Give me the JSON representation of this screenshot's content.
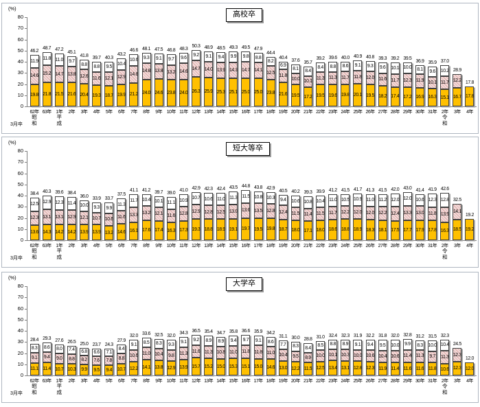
{
  "x_axis": {
    "march_label": "3月卒",
    "eras": [
      {
        "index": 0,
        "lines": [
          "昭",
          "和"
        ]
      },
      {
        "index": 2,
        "lines": [
          "平",
          "成"
        ]
      },
      {
        "index": 33,
        "lines": [
          "令",
          "和"
        ]
      }
    ]
  },
  "style": {
    "bottom_color": "#FFC000",
    "middle_color": "#F2DCDB",
    "middle_hatch_color": "#DFA9A6",
    "top_color": "#FFFFFF",
    "bar_border_color": "#3F3F3F",
    "bar_shadow_color": "#A6A6A6",
    "panel_border_color": "#AEB6C0",
    "axis_color": "#808080"
  },
  "chart_data": [
    {
      "type": "bar",
      "subtype": "stacked",
      "title": "高校卒",
      "ylabel": "(%)",
      "ylim": [
        0,
        80
      ],
      "yticks": [
        0,
        10,
        20,
        30,
        40,
        50,
        60,
        70,
        80
      ],
      "grid": false,
      "legend": "none",
      "categories": [
        "62年",
        "63年",
        "1年",
        "2年",
        "3年",
        "4年",
        "5年",
        "6年",
        "7年",
        "8年",
        "9年",
        "10年",
        "11年",
        "12年",
        "13年",
        "14年",
        "15年",
        "16年",
        "17年",
        "18年",
        "19年",
        "20年",
        "21年",
        "22年",
        "23年",
        "24年",
        "25年",
        "26年",
        "27年",
        "28年",
        "29年",
        "30年",
        "31年",
        "2年",
        "3年",
        "4年"
      ],
      "totals": [
        46.2,
        48.7,
        47.2,
        45.1,
        41.8,
        39.7,
        40.3,
        43.2,
        46.6,
        48.1,
        47.5,
        46.8,
        48.3,
        50.3,
        48.9,
        48.5,
        49.3,
        49.5,
        47.9,
        44.4,
        40.4,
        37.6,
        35.7,
        39.2,
        39.6,
        40.0,
        40.9,
        40.8,
        39.3,
        39.2,
        39.5,
        36.9,
        35.9,
        37.0,
        28.9,
        17.8
      ],
      "series": [
        {
          "name": "bottom",
          "values": [
            19.8,
            21.8,
            21.5,
            21.6,
            20.4,
            19.3,
            18.7,
            19.9,
            21.2,
            24.0,
            24.6,
            23.8,
            24.0,
            26.3,
            25.9,
            25.3,
            25.1,
            25.0,
            25.0,
            23.8,
            21.6,
            19.5,
            17.2,
            19.5,
            19.6,
            19.8,
            20.1,
            19.5,
            18.2,
            17.4,
            17.2,
            16.9,
            16.3,
            15.1,
            16.7,
            17.8
          ]
        },
        {
          "name": "middle",
          "values": [
            14.6,
            15.2,
            14.7,
            13.8,
            12.6,
            11.6,
            12.1,
            12.9,
            14.8,
            14.8,
            13.8,
            13.2,
            14.6,
            14.7,
            14.0,
            13.9,
            14.3,
            14.7,
            14.1,
            12.5,
            11.8,
            10.0,
            10.1,
            11.3,
            11.3,
            11.7,
            11.8,
            12.0,
            11.6,
            11.7,
            12.3,
            11.9,
            10.1,
            11.7,
            12.2,
            null
          ]
        },
        {
          "name": "top",
          "values": [
            11.9,
            11.8,
            11.0,
            9.7,
            8.8,
            8.8,
            9.5,
            10.4,
            10.6,
            9.3,
            9.1,
            9.7,
            9.6,
            9.2,
            9.1,
            9.4,
            9.9,
            9.8,
            8.8,
            8.2,
            6.9,
            8.1,
            8.4,
            8.4,
            8.8,
            8.6,
            9.1,
            9.3,
            9.6,
            10.1,
            10.0,
            8.1,
            9.6,
            10.2,
            null,
            null
          ]
        }
      ]
    },
    {
      "type": "bar",
      "subtype": "stacked",
      "title": "短大等卒",
      "ylabel": "(%)",
      "ylim": [
        0,
        80
      ],
      "yticks": [
        0,
        10,
        20,
        30,
        40,
        50,
        60,
        70,
        80
      ],
      "grid": false,
      "legend": "none",
      "categories": [
        "62年",
        "63年",
        "1年",
        "2年",
        "3年",
        "4年",
        "5年",
        "6年",
        "7年",
        "8年",
        "9年",
        "10年",
        "11年",
        "12年",
        "13年",
        "14年",
        "15年",
        "16年",
        "17年",
        "18年",
        "19年",
        "20年",
        "21年",
        "22年",
        "23年",
        "24年",
        "25年",
        "26年",
        "27年",
        "28年",
        "29年",
        "30年",
        "31年",
        "2年",
        "3年",
        "4年"
      ],
      "totals": [
        38.4,
        40.3,
        39.6,
        38.4,
        36.0,
        33.9,
        33.7,
        37.5,
        41.1,
        41.2,
        39.7,
        39.0,
        41.0,
        42.9,
        42.3,
        42.4,
        43.5,
        44.8,
        43.8,
        42.9,
        40.5,
        40.2,
        39.3,
        39.9,
        41.2,
        41.5,
        41.7,
        41.3,
        41.5,
        42.0,
        43.0,
        41.4,
        41.9,
        42.6,
        32.5,
        19.2
      ],
      "series": [
        {
          "name": "bottom",
          "values": [
            13.6,
            14.3,
            14.2,
            14.2,
            13.9,
            13.9,
            13.2,
            14.6,
            16.1,
            17.6,
            17.4,
            16.3,
            17.3,
            19.3,
            18.8,
            18.9,
            19.1,
            19.7,
            19.5,
            19.8,
            18.7,
            18.0,
            17.1,
            18.0,
            18.6,
            18.8,
            18.9,
            18.3,
            18.1,
            17.5,
            17.7,
            17.9,
            17.8,
            16.3,
            18.5,
            19.2
          ]
        },
        {
          "name": "middle",
          "values": [
            12.3,
            13.1,
            13.1,
            12.9,
            12.1,
            10.7,
            10.6,
            11.6,
            13.3,
            13.2,
            12.1,
            11.6,
            12.8,
            12.9,
            12.8,
            12.5,
            13.0,
            13.6,
            13.5,
            12.8,
            12.4,
            11.5,
            11.4,
            11.5,
            11.7,
            12.2,
            12.0,
            12.0,
            12.2,
            12.4,
            13.3,
            13.0,
            11.8,
            13.5,
            14.1,
            null
          ]
        },
        {
          "name": "top",
          "values": [
            12.5,
            12.9,
            12.3,
            11.4,
            10.0,
            9.3,
            9.9,
            11.3,
            11.7,
            10.4,
            10.1,
            11.1,
            10.9,
            10.7,
            10.6,
            11.0,
            11.3,
            11.5,
            10.8,
            10.3,
            9.4,
            10.6,
            10.8,
            10.4,
            11.0,
            10.5,
            10.9,
            11.0,
            11.2,
            12.0,
            12.0,
            10.6,
            12.3,
            12.8,
            null,
            null
          ]
        }
      ]
    },
    {
      "type": "bar",
      "subtype": "stacked",
      "title": "大学卒",
      "ylabel": "(%)",
      "ylim": [
        0,
        80
      ],
      "yticks": [
        0,
        10,
        20,
        30,
        40,
        50,
        60,
        70,
        80
      ],
      "grid": false,
      "legend": "none",
      "categories": [
        "62年",
        "63年",
        "1年",
        "2年",
        "3年",
        "4年",
        "5年",
        "6年",
        "7年",
        "8年",
        "9年",
        "10年",
        "11年",
        "12年",
        "13年",
        "14年",
        "15年",
        "16年",
        "17年",
        "18年",
        "19年",
        "20年",
        "21年",
        "22年",
        "23年",
        "24年",
        "25年",
        "26年",
        "27年",
        "28年",
        "29年",
        "30年",
        "31年",
        "2年",
        "3年",
        "4年"
      ],
      "totals": [
        28.4,
        29.3,
        27.6,
        26.5,
        25.0,
        23.7,
        24.3,
        27.9,
        32.0,
        33.6,
        32.5,
        32.0,
        34.3,
        36.5,
        35.4,
        34.7,
        35.8,
        36.6,
        35.9,
        34.2,
        31.1,
        30.0,
        28.8,
        31.0,
        32.4,
        32.3,
        31.9,
        32.2,
        31.8,
        32.0,
        32.8,
        31.2,
        31.5,
        32.3,
        24.5,
        12.0
      ],
      "series": [
        {
          "name": "bottom",
          "values": [
            11.1,
            11.4,
            10.7,
            10.3,
            9.9,
            9.5,
            9.4,
            10.7,
            12.2,
            14.1,
            13.8,
            12.9,
            13.9,
            15.7,
            15.2,
            15.0,
            15.3,
            15.1,
            15.0,
            14.6,
            13.0,
            12.2,
            11.5,
            12.5,
            13.4,
            13.1,
            12.8,
            12.3,
            11.9,
            11.4,
            11.6,
            11.6,
            11.8,
            10.6,
            12.3,
            12.0
          ]
        },
        {
          "name": "middle",
          "values": [
            9.1,
            9.4,
            9.0,
            8.8,
            8.2,
            7.6,
            7.8,
            8.8,
            10.6,
            11.0,
            10.4,
            9.8,
            11.3,
            11.6,
            11.3,
            10.8,
            11.0,
            11.8,
            11.8,
            11.0,
            10.4,
            9.5,
            8.9,
            10.0,
            10.1,
            10.3,
            10.0,
            10.6,
            10.4,
            10.6,
            11.4,
            11.3,
            9.7,
            11.3,
            12.3,
            null
          ]
        },
        {
          "name": "top",
          "values": [
            8.3,
            8.6,
            8.0,
            7.4,
            6.8,
            6.6,
            7.1,
            8.4,
            9.1,
            8.5,
            8.3,
            9.3,
            9.1,
            9.2,
            8.9,
            8.9,
            9.4,
            9.7,
            9.1,
            8.6,
            7.7,
            8.3,
            8.4,
            8.5,
            8.8,
            8.9,
            9.1,
            9.4,
            9.5,
            10.0,
            9.9,
            8.3,
            10.0,
            10.4,
            null,
            null
          ]
        }
      ]
    }
  ]
}
